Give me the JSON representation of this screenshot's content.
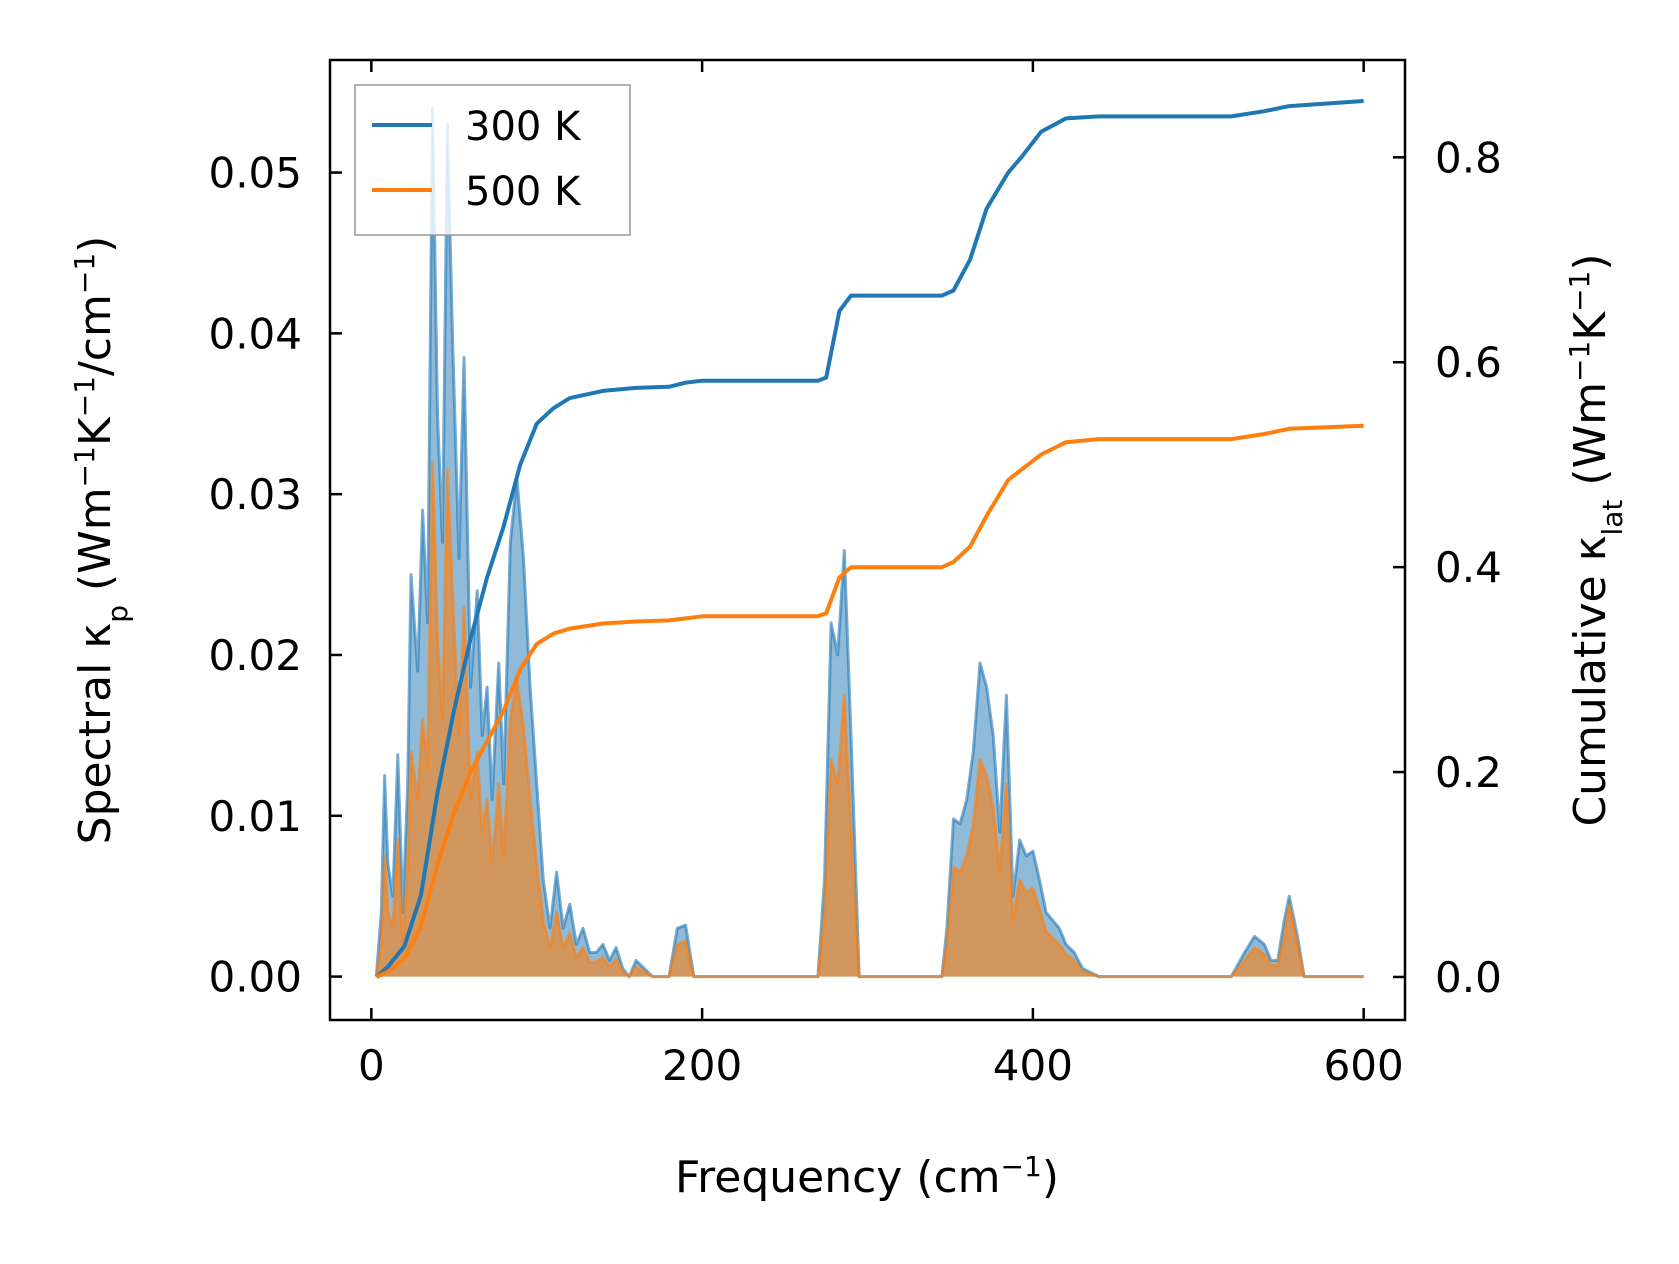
{
  "chart_data": {
    "type": "line",
    "title": "",
    "xlabel": {
      "base": "Frequency (cm",
      "sup": "−1",
      "tail": ")"
    },
    "ylabel_left": {
      "base": "Spectral κ",
      "sub": "p",
      "mid": " (Wm",
      "sup1": "−1",
      "k": "K",
      "sup2": "−1",
      "slash": "/cm",
      "sup3": "−1",
      "tail": ")"
    },
    "ylabel_right": {
      "base": "Cumulative κ",
      "sub": "lat",
      "mid": " (Wm",
      "sup1": "−1",
      "k": "K",
      "sup2": "−1",
      "tail": ")"
    },
    "xlim": [
      -25,
      625
    ],
    "ylim_left": [
      -0.0027,
      0.057
    ],
    "ylim_right": [
      -0.042,
      0.895
    ],
    "xticks": [
      0,
      200,
      400,
      600
    ],
    "xtick_labels": [
      "0",
      "200",
      "400",
      "600"
    ],
    "yticks_left": [
      0,
      0.01,
      0.02,
      0.03,
      0.04,
      0.05
    ],
    "ytick_labels_left": [
      "0.00",
      "0.01",
      "0.02",
      "0.03",
      "0.04",
      "0.05"
    ],
    "yticks_right": [
      0,
      0.2,
      0.4,
      0.6,
      0.8
    ],
    "ytick_labels_right": [
      "0.0",
      "0.2",
      "0.4",
      "0.6",
      "0.8"
    ],
    "grid": false,
    "legend": {
      "position": "top-left",
      "entries": [
        "300 K",
        "500 K"
      ]
    },
    "series": [
      {
        "name": "300 K",
        "color": "#1f77b4",
        "spectral": [
          [
            3,
            0
          ],
          [
            6,
            0.004
          ],
          [
            8,
            0.0125
          ],
          [
            10,
            0.007
          ],
          [
            13,
            0.005
          ],
          [
            16,
            0.0138
          ],
          [
            19,
            0.004
          ],
          [
            22,
            0.012
          ],
          [
            24,
            0.025
          ],
          [
            28,
            0.019
          ],
          [
            31,
            0.029
          ],
          [
            34,
            0.022
          ],
          [
            37,
            0.054
          ],
          [
            40,
            0.035
          ],
          [
            43,
            0.027
          ],
          [
            46,
            0.053
          ],
          [
            49,
            0.04
          ],
          [
            53,
            0.026
          ],
          [
            56,
            0.0385
          ],
          [
            60,
            0.018
          ],
          [
            64,
            0.024
          ],
          [
            67,
            0.015
          ],
          [
            70,
            0.018
          ],
          [
            73,
            0.011
          ],
          [
            77,
            0.0195
          ],
          [
            80,
            0.012
          ],
          [
            84,
            0.027
          ],
          [
            88,
            0.031
          ],
          [
            92,
            0.026
          ],
          [
            96,
            0.018
          ],
          [
            100,
            0.012
          ],
          [
            104,
            0.006
          ],
          [
            108,
            0.003
          ],
          [
            112,
            0.0065
          ],
          [
            116,
            0.003
          ],
          [
            120,
            0.0045
          ],
          [
            124,
            0.002
          ],
          [
            128,
            0.003
          ],
          [
            132,
            0.0015
          ],
          [
            136,
            0.0015
          ],
          [
            140,
            0.002
          ],
          [
            144,
            0.001
          ],
          [
            148,
            0.0018
          ],
          [
            152,
            0.0005
          ],
          [
            156,
            0
          ],
          [
            160,
            0.001
          ],
          [
            165,
            0.0005
          ],
          [
            170,
            0
          ],
          [
            180,
            0
          ],
          [
            185,
            0.003
          ],
          [
            190,
            0.0032
          ],
          [
            195,
            0
          ],
          [
            270,
            0
          ],
          [
            274,
            0.006
          ],
          [
            278,
            0.022
          ],
          [
            282,
            0.02
          ],
          [
            286,
            0.0265
          ],
          [
            290,
            0.015
          ],
          [
            295,
            0
          ],
          [
            345,
            0
          ],
          [
            348,
            0.003
          ],
          [
            352,
            0.0098
          ],
          [
            356,
            0.0095
          ],
          [
            360,
            0.011
          ],
          [
            364,
            0.014
          ],
          [
            368,
            0.0195
          ],
          [
            372,
            0.018
          ],
          [
            376,
            0.015
          ],
          [
            380,
            0.009
          ],
          [
            384,
            0.0175
          ],
          [
            388,
            0.005
          ],
          [
            392,
            0.0085
          ],
          [
            396,
            0.0075
          ],
          [
            400,
            0.0078
          ],
          [
            404,
            0.006
          ],
          [
            408,
            0.004
          ],
          [
            412,
            0.0035
          ],
          [
            416,
            0.003
          ],
          [
            420,
            0.002
          ],
          [
            425,
            0.0015
          ],
          [
            430,
            0.0005
          ],
          [
            440,
            0
          ],
          [
            520,
            0
          ],
          [
            528,
            0.0015
          ],
          [
            534,
            0.0025
          ],
          [
            540,
            0.002
          ],
          [
            544,
            0.001
          ],
          [
            548,
            0.001
          ],
          [
            552,
            0.0035
          ],
          [
            555,
            0.005
          ],
          [
            560,
            0.0025
          ],
          [
            564,
            0
          ],
          [
            600,
            0
          ]
        ],
        "cumulative": [
          [
            3,
            0
          ],
          [
            10,
            0.01
          ],
          [
            20,
            0.03
          ],
          [
            30,
            0.08
          ],
          [
            40,
            0.18
          ],
          [
            50,
            0.26
          ],
          [
            60,
            0.33
          ],
          [
            70,
            0.39
          ],
          [
            80,
            0.44
          ],
          [
            90,
            0.5
          ],
          [
            100,
            0.54
          ],
          [
            110,
            0.555
          ],
          [
            120,
            0.565
          ],
          [
            140,
            0.572
          ],
          [
            160,
            0.575
          ],
          [
            180,
            0.576
          ],
          [
            190,
            0.58
          ],
          [
            200,
            0.582
          ],
          [
            270,
            0.582
          ],
          [
            275,
            0.585
          ],
          [
            283,
            0.65
          ],
          [
            290,
            0.665
          ],
          [
            345,
            0.665
          ],
          [
            352,
            0.67
          ],
          [
            362,
            0.7
          ],
          [
            372,
            0.75
          ],
          [
            385,
            0.785
          ],
          [
            393,
            0.8
          ],
          [
            405,
            0.825
          ],
          [
            420,
            0.838
          ],
          [
            440,
            0.84
          ],
          [
            520,
            0.84
          ],
          [
            540,
            0.845
          ],
          [
            555,
            0.85
          ],
          [
            600,
            0.855
          ]
        ]
      },
      {
        "name": "500 K",
        "color": "#ff7f0e",
        "spectral": [
          [
            3,
            0
          ],
          [
            6,
            0.002
          ],
          [
            8,
            0.0075
          ],
          [
            10,
            0.004
          ],
          [
            13,
            0.003
          ],
          [
            16,
            0.0085
          ],
          [
            19,
            0.002
          ],
          [
            22,
            0.007
          ],
          [
            24,
            0.014
          ],
          [
            28,
            0.011
          ],
          [
            31,
            0.016
          ],
          [
            34,
            0.013
          ],
          [
            37,
            0.032
          ],
          [
            40,
            0.021
          ],
          [
            43,
            0.016
          ],
          [
            46,
            0.0315
          ],
          [
            49,
            0.024
          ],
          [
            53,
            0.015
          ],
          [
            56,
            0.023
          ],
          [
            60,
            0.011
          ],
          [
            64,
            0.014
          ],
          [
            67,
            0.009
          ],
          [
            70,
            0.011
          ],
          [
            73,
            0.007
          ],
          [
            77,
            0.012
          ],
          [
            80,
            0.0075
          ],
          [
            84,
            0.016
          ],
          [
            88,
            0.0185
          ],
          [
            92,
            0.0155
          ],
          [
            96,
            0.011
          ],
          [
            100,
            0.007
          ],
          [
            104,
            0.0035
          ],
          [
            108,
            0.0018
          ],
          [
            112,
            0.004
          ],
          [
            116,
            0.0018
          ],
          [
            120,
            0.0027
          ],
          [
            124,
            0.0012
          ],
          [
            128,
            0.0018
          ],
          [
            132,
            0.0009
          ],
          [
            136,
            0.0009
          ],
          [
            140,
            0.0012
          ],
          [
            144,
            0.0006
          ],
          [
            148,
            0.0011
          ],
          [
            152,
            0.0003
          ],
          [
            156,
            0
          ],
          [
            160,
            0.0006
          ],
          [
            165,
            0.0003
          ],
          [
            170,
            0
          ],
          [
            180,
            0
          ],
          [
            185,
            0.002
          ],
          [
            190,
            0.0022
          ],
          [
            195,
            0
          ],
          [
            270,
            0
          ],
          [
            274,
            0.004
          ],
          [
            278,
            0.0135
          ],
          [
            282,
            0.012
          ],
          [
            286,
            0.0175
          ],
          [
            290,
            0.009
          ],
          [
            295,
            0
          ],
          [
            345,
            0
          ],
          [
            348,
            0.002
          ],
          [
            352,
            0.0068
          ],
          [
            356,
            0.0065
          ],
          [
            360,
            0.0075
          ],
          [
            364,
            0.0095
          ],
          [
            368,
            0.0135
          ],
          [
            372,
            0.0125
          ],
          [
            376,
            0.0105
          ],
          [
            380,
            0.0065
          ],
          [
            384,
            0.012
          ],
          [
            388,
            0.0035
          ],
          [
            392,
            0.006
          ],
          [
            396,
            0.0052
          ],
          [
            400,
            0.0055
          ],
          [
            404,
            0.0042
          ],
          [
            408,
            0.0028
          ],
          [
            412,
            0.0024
          ],
          [
            416,
            0.002
          ],
          [
            420,
            0.0014
          ],
          [
            425,
            0.001
          ],
          [
            430,
            0.0003
          ],
          [
            440,
            0
          ],
          [
            520,
            0
          ],
          [
            528,
            0.001
          ],
          [
            534,
            0.0018
          ],
          [
            540,
            0.0014
          ],
          [
            544,
            0.0007
          ],
          [
            548,
            0.0007
          ],
          [
            552,
            0.0025
          ],
          [
            555,
            0.0045
          ],
          [
            560,
            0.002
          ],
          [
            564,
            0
          ],
          [
            600,
            0
          ]
        ],
        "cumulative": [
          [
            3,
            0
          ],
          [
            10,
            0.005
          ],
          [
            20,
            0.018
          ],
          [
            30,
            0.05
          ],
          [
            40,
            0.11
          ],
          [
            50,
            0.16
          ],
          [
            60,
            0.2
          ],
          [
            70,
            0.23
          ],
          [
            80,
            0.26
          ],
          [
            90,
            0.3
          ],
          [
            100,
            0.325
          ],
          [
            110,
            0.335
          ],
          [
            120,
            0.34
          ],
          [
            140,
            0.345
          ],
          [
            160,
            0.347
          ],
          [
            180,
            0.348
          ],
          [
            190,
            0.35
          ],
          [
            200,
            0.352
          ],
          [
            270,
            0.352
          ],
          [
            275,
            0.355
          ],
          [
            283,
            0.39
          ],
          [
            290,
            0.4
          ],
          [
            345,
            0.4
          ],
          [
            352,
            0.405
          ],
          [
            362,
            0.42
          ],
          [
            372,
            0.45
          ],
          [
            385,
            0.485
          ],
          [
            393,
            0.495
          ],
          [
            405,
            0.51
          ],
          [
            420,
            0.522
          ],
          [
            440,
            0.525
          ],
          [
            520,
            0.525
          ],
          [
            540,
            0.53
          ],
          [
            555,
            0.535
          ],
          [
            600,
            0.538
          ]
        ]
      }
    ]
  }
}
